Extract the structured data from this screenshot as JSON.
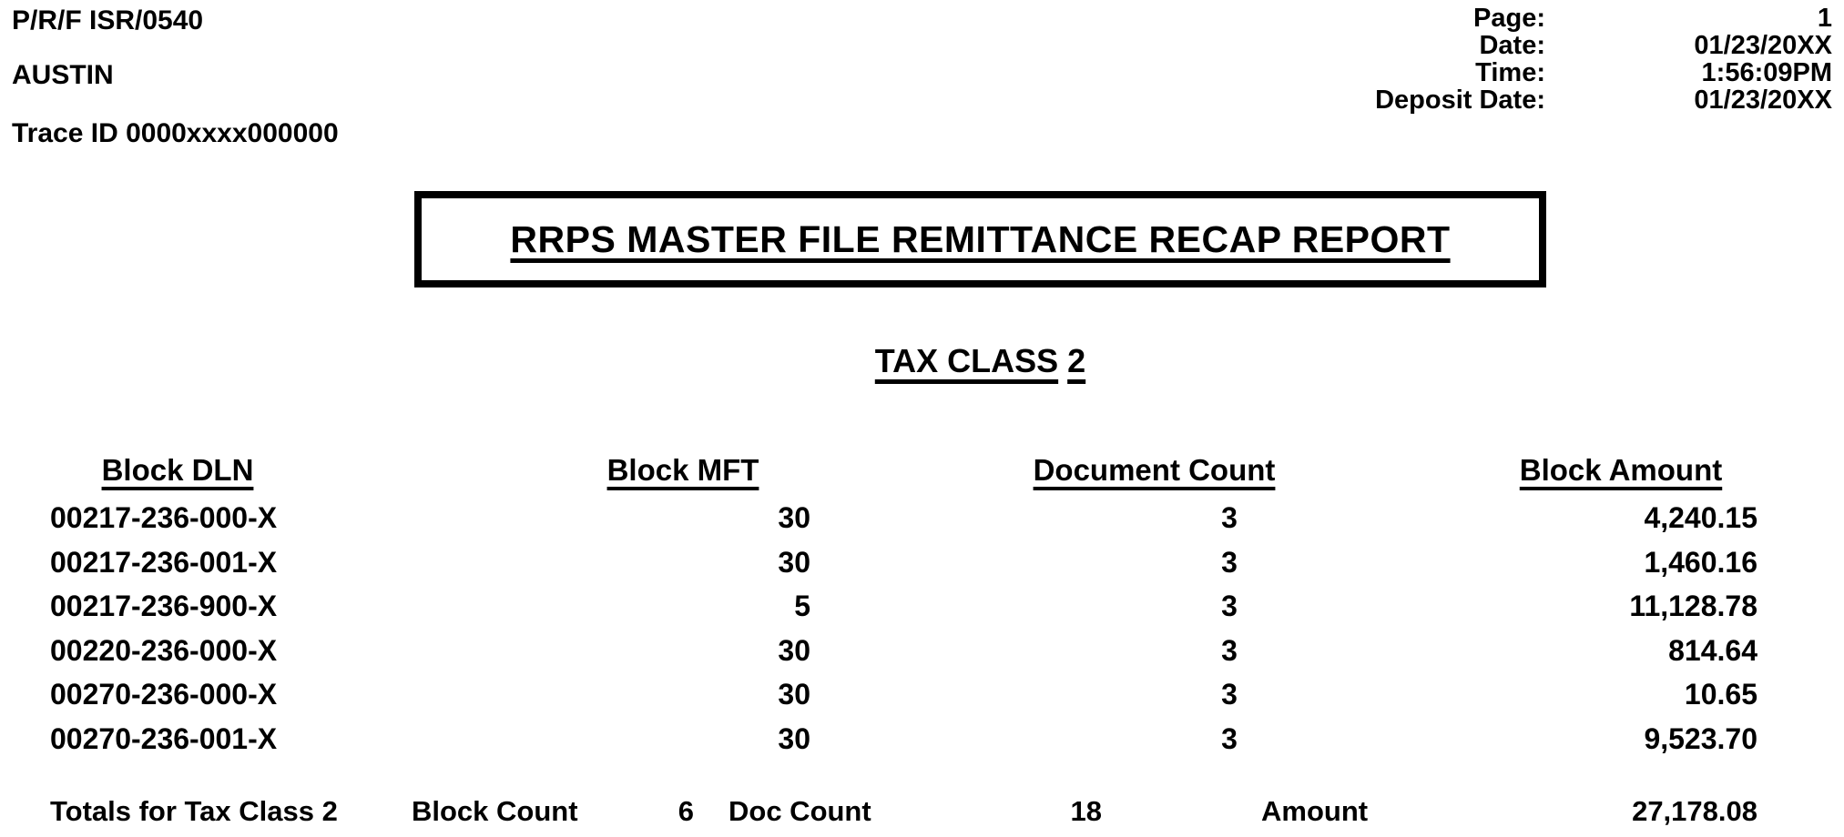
{
  "meta": {
    "report_code": "P/R/F ISR/0540",
    "site": "AUSTIN",
    "trace_id": "Trace ID 0000xxxx000000",
    "info": [
      {
        "label": "Page:",
        "value": "1"
      },
      {
        "label": "Date:",
        "value": "01/23/20XX"
      },
      {
        "label": "Time:",
        "value": "1:56:09PM"
      },
      {
        "label": "Deposit Date:",
        "value": "01/23/20XX"
      }
    ]
  },
  "title": "RRPS MASTER FILE REMITTANCE RECAP REPORT",
  "section": {
    "label": "TAX CLASS",
    "value": "2"
  },
  "table": {
    "headers": [
      "Block DLN",
      "Block MFT",
      "Document Count",
      "Block Amount"
    ],
    "rows": [
      {
        "dln": "00217-236-000-X",
        "mft": "30",
        "doc": "3",
        "amount": "4,240.15"
      },
      {
        "dln": "00217-236-001-X",
        "mft": "30",
        "doc": "3",
        "amount": "1,460.16"
      },
      {
        "dln": "00217-236-900-X",
        "mft": "5",
        "doc": "3",
        "amount": "11,128.78"
      },
      {
        "dln": "00220-236-000-X",
        "mft": "30",
        "doc": "3",
        "amount": "814.64"
      },
      {
        "dln": "00270-236-000-X",
        "mft": "30",
        "doc": "3",
        "amount": "10.65"
      },
      {
        "dln": "00270-236-001-X",
        "mft": "30",
        "doc": "3",
        "amount": "9,523.70"
      }
    ]
  },
  "totals": {
    "label": "Totals for Tax Class 2",
    "block_count_label": "Block Count",
    "block_count": "6",
    "doc_count_label": "Doc Count",
    "doc_count": "18",
    "amount_label": "Amount",
    "amount": "27,178.08"
  },
  "colors": {
    "ink": "#000000",
    "paper": "#ffffff"
  }
}
